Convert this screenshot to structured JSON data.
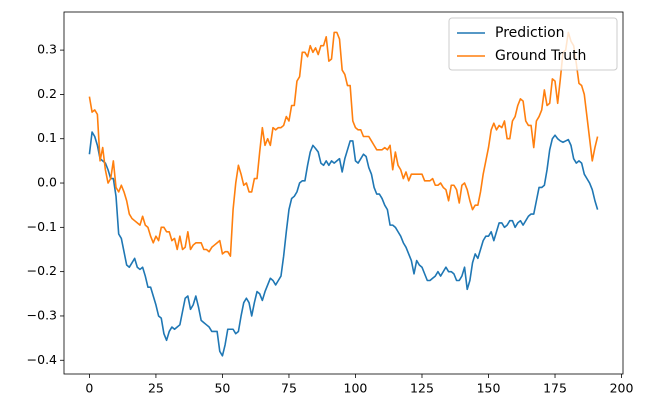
{
  "chart_data": {
    "type": "line",
    "x": [
      0,
      1,
      2,
      3,
      4,
      5,
      6,
      7,
      8,
      9,
      10,
      11,
      12,
      13,
      14,
      15,
      16,
      17,
      18,
      19,
      20,
      21,
      22,
      23,
      24,
      25,
      26,
      27,
      28,
      29,
      30,
      31,
      32,
      33,
      34,
      35,
      36,
      37,
      38,
      39,
      40,
      41,
      42,
      43,
      44,
      45,
      46,
      47,
      48,
      49,
      50,
      51,
      52,
      53,
      54,
      55,
      56,
      57,
      58,
      59,
      60,
      61,
      62,
      63,
      64,
      65,
      66,
      67,
      68,
      69,
      70,
      71,
      72,
      73,
      74,
      75,
      76,
      77,
      78,
      79,
      80,
      81,
      82,
      83,
      84,
      85,
      86,
      87,
      88,
      89,
      90,
      91,
      92,
      93,
      94,
      95,
      96,
      97,
      98,
      99,
      100,
      101,
      102,
      103,
      104,
      105,
      106,
      107,
      108,
      109,
      110,
      111,
      112,
      113,
      114,
      115,
      116,
      117,
      118,
      119,
      120,
      121,
      122,
      123,
      124,
      125,
      126,
      127,
      128,
      129,
      130,
      131,
      132,
      133,
      134,
      135,
      136,
      137,
      138,
      139,
      140,
      141,
      142,
      143,
      144,
      145,
      146,
      147,
      148,
      149,
      150,
      151,
      152,
      153,
      154,
      155,
      156,
      157,
      158,
      159,
      160,
      161,
      162,
      163,
      164,
      165,
      166,
      167,
      168,
      169,
      170,
      171,
      172,
      173,
      174,
      175,
      176,
      177,
      178,
      179,
      180,
      181,
      182,
      183,
      184,
      185,
      186,
      187,
      188,
      189,
      190,
      191
    ],
    "series": [
      {
        "name": "Prediction",
        "color": "#1f77b4",
        "values": [
          0.065,
          0.115,
          0.105,
          0.085,
          0.055,
          0.05,
          0.045,
          0.03,
          0.01,
          0.01,
          -0.03,
          -0.115,
          -0.125,
          -0.155,
          -0.185,
          -0.19,
          -0.18,
          -0.17,
          -0.19,
          -0.195,
          -0.19,
          -0.21,
          -0.235,
          -0.235,
          -0.255,
          -0.275,
          -0.3,
          -0.305,
          -0.34,
          -0.355,
          -0.335,
          -0.325,
          -0.33,
          -0.325,
          -0.32,
          -0.29,
          -0.26,
          -0.255,
          -0.285,
          -0.275,
          -0.255,
          -0.28,
          -0.31,
          -0.315,
          -0.32,
          -0.325,
          -0.335,
          -0.335,
          -0.335,
          -0.38,
          -0.39,
          -0.365,
          -0.33,
          -0.33,
          -0.33,
          -0.34,
          -0.335,
          -0.3,
          -0.27,
          -0.26,
          -0.27,
          -0.3,
          -0.27,
          -0.245,
          -0.25,
          -0.265,
          -0.245,
          -0.23,
          -0.215,
          -0.22,
          -0.23,
          -0.22,
          -0.21,
          -0.165,
          -0.11,
          -0.06,
          -0.035,
          -0.03,
          -0.02,
          0.0,
          0.005,
          0.005,
          0.04,
          0.07,
          0.085,
          0.078,
          0.07,
          0.045,
          0.04,
          0.05,
          0.04,
          0.05,
          0.045,
          0.05,
          0.055,
          0.025,
          0.055,
          0.075,
          0.095,
          0.095,
          0.05,
          0.045,
          0.055,
          0.065,
          0.06,
          0.035,
          0.02,
          -0.01,
          -0.025,
          -0.025,
          -0.035,
          -0.05,
          -0.06,
          -0.095,
          -0.095,
          -0.1,
          -0.11,
          -0.12,
          -0.135,
          -0.145,
          -0.16,
          -0.175,
          -0.205,
          -0.175,
          -0.185,
          -0.19,
          -0.205,
          -0.22,
          -0.22,
          -0.215,
          -0.21,
          -0.2,
          -0.21,
          -0.2,
          -0.19,
          -0.2,
          -0.2,
          -0.205,
          -0.22,
          -0.22,
          -0.21,
          -0.19,
          -0.24,
          -0.22,
          -0.18,
          -0.16,
          -0.17,
          -0.15,
          -0.13,
          -0.12,
          -0.12,
          -0.11,
          -0.13,
          -0.11,
          -0.09,
          -0.09,
          -0.1,
          -0.095,
          -0.085,
          -0.085,
          -0.1,
          -0.09,
          -0.085,
          -0.095,
          -0.085,
          -0.075,
          -0.07,
          -0.07,
          -0.04,
          -0.01,
          -0.01,
          -0.005,
          0.03,
          0.075,
          0.1,
          0.108,
          0.1,
          0.095,
          0.092,
          0.095,
          0.098,
          0.085,
          0.055,
          0.045,
          0.05,
          0.045,
          0.02,
          0.01,
          0.0,
          -0.015,
          -0.04,
          -0.06
        ]
      },
      {
        "name": "Ground Truth",
        "color": "#ff7f0e",
        "values": [
          0.195,
          0.16,
          0.165,
          0.155,
          0.05,
          0.08,
          0.03,
          0.0,
          0.01,
          0.05,
          -0.01,
          -0.02,
          -0.005,
          -0.02,
          -0.04,
          -0.07,
          -0.08,
          -0.085,
          -0.09,
          -0.095,
          -0.075,
          -0.095,
          -0.1,
          -0.12,
          -0.135,
          -0.12,
          -0.13,
          -0.1,
          -0.1,
          -0.11,
          -0.11,
          -0.13,
          -0.125,
          -0.15,
          -0.12,
          -0.15,
          -0.145,
          -0.11,
          -0.15,
          -0.14,
          -0.135,
          -0.135,
          -0.135,
          -0.15,
          -0.15,
          -0.155,
          -0.145,
          -0.14,
          -0.135,
          -0.13,
          -0.16,
          -0.155,
          -0.155,
          -0.165,
          -0.06,
          0.0,
          0.04,
          0.02,
          -0.005,
          0.0,
          -0.02,
          -0.02,
          0.01,
          0.01,
          0.07,
          0.125,
          0.085,
          0.1,
          0.085,
          0.125,
          0.12,
          0.125,
          0.125,
          0.13,
          0.15,
          0.14,
          0.175,
          0.175,
          0.23,
          0.24,
          0.295,
          0.295,
          0.285,
          0.31,
          0.295,
          0.305,
          0.29,
          0.31,
          0.31,
          0.33,
          0.275,
          0.28,
          0.34,
          0.34,
          0.325,
          0.255,
          0.245,
          0.22,
          0.22,
          0.14,
          0.125,
          0.12,
          0.12,
          0.105,
          0.105,
          0.105,
          0.095,
          0.085,
          0.075,
          0.075,
          0.075,
          0.08,
          0.075,
          0.085,
          0.03,
          0.07,
          0.04,
          0.03,
          0.01,
          0.025,
          0.005,
          0.02,
          0.02,
          0.02,
          0.02,
          0.02,
          0.005,
          0.005,
          0.005,
          0.01,
          -0.005,
          -0.005,
          0.0,
          -0.01,
          -0.015,
          -0.04,
          -0.005,
          -0.005,
          -0.015,
          -0.045,
          -0.005,
          0.0,
          -0.015,
          -0.04,
          -0.06,
          -0.05,
          -0.05,
          -0.02,
          0.02,
          0.05,
          0.08,
          0.12,
          0.135,
          0.12,
          0.13,
          0.125,
          0.14,
          0.1,
          0.1,
          0.14,
          0.15,
          0.175,
          0.19,
          0.185,
          0.14,
          0.13,
          0.13,
          0.08,
          0.14,
          0.15,
          0.165,
          0.21,
          0.175,
          0.18,
          0.235,
          0.23,
          0.18,
          0.235,
          0.295,
          0.3,
          0.34,
          0.32,
          0.31,
          0.27,
          0.225,
          0.22,
          0.2,
          0.15,
          0.1,
          0.05,
          0.08,
          0.105
        ]
      }
    ],
    "xlim": [
      -9.55,
      200.55
    ],
    "ylim": [
      -0.431,
      0.386
    ],
    "xticks": [
      0,
      25,
      50,
      75,
      100,
      125,
      150,
      175,
      200
    ],
    "yticks": [
      {
        "value": -0.4,
        "label": "−0.4"
      },
      {
        "value": -0.3,
        "label": "−0.3"
      },
      {
        "value": -0.2,
        "label": "−0.2"
      },
      {
        "value": -0.1,
        "label": "−0.1"
      },
      {
        "value": 0.0,
        "label": "0.0"
      },
      0.1,
      0.2,
      0.3
    ],
    "legend": "upper right"
  }
}
